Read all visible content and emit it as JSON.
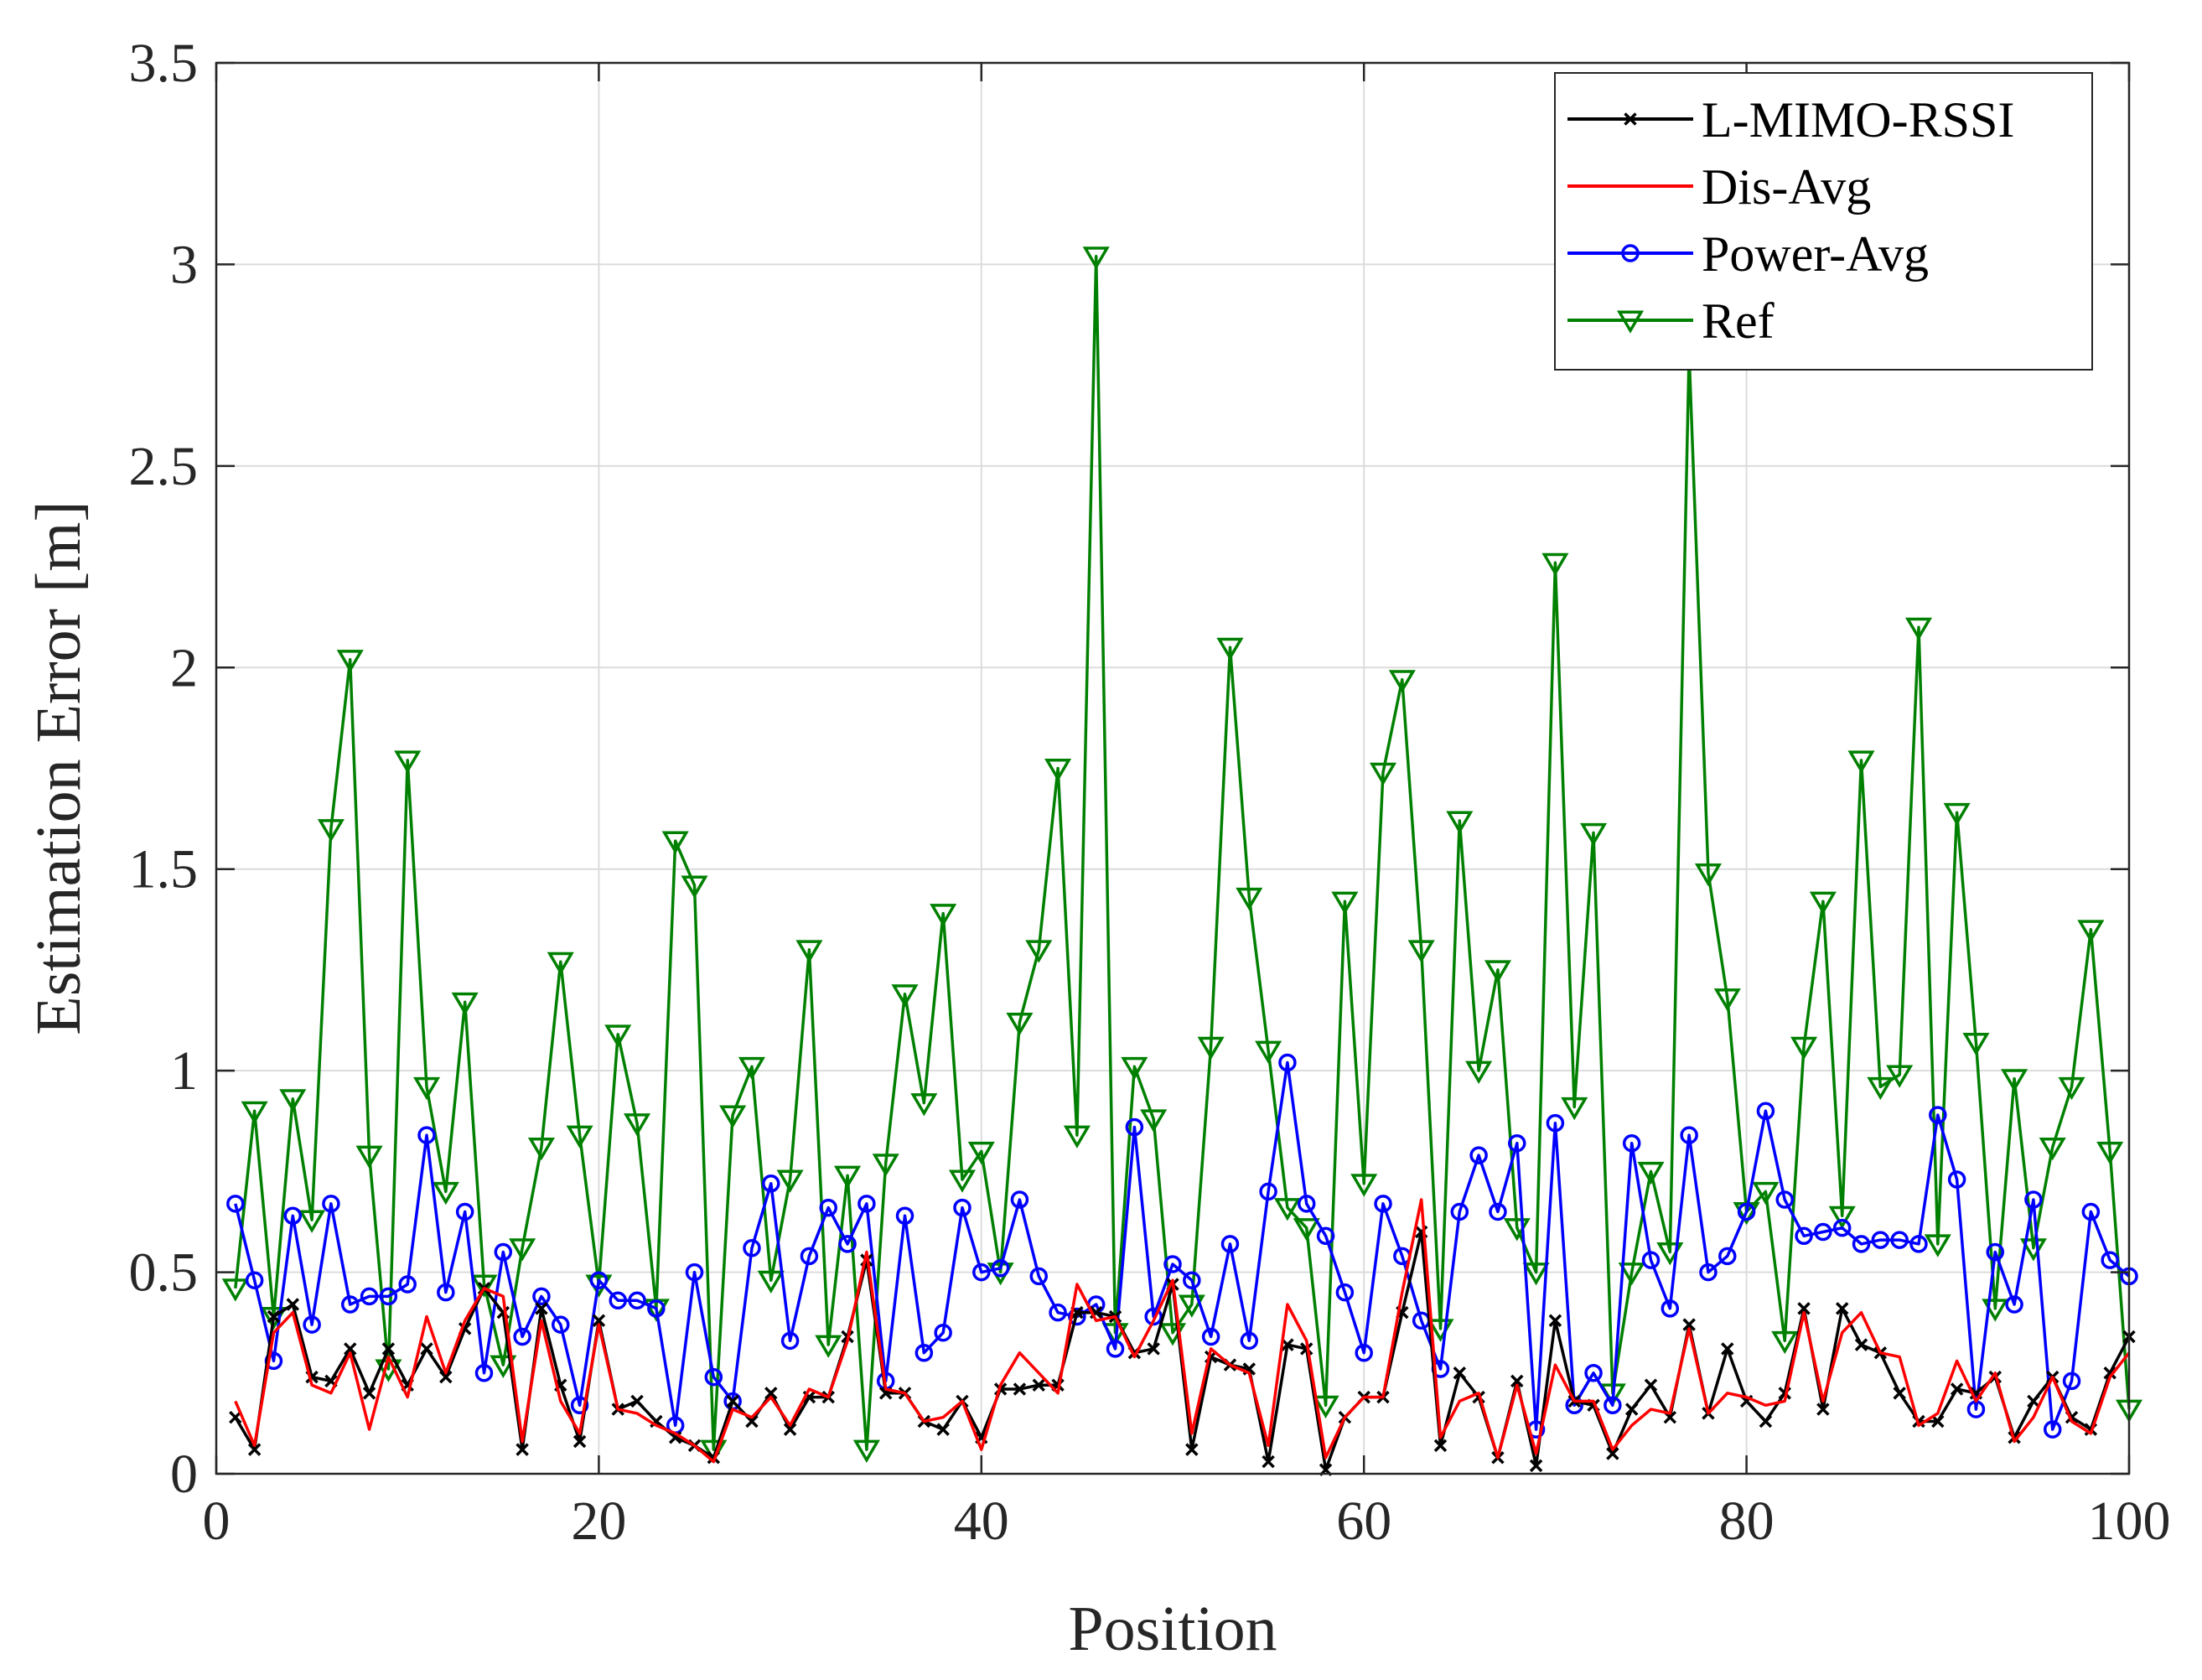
{
  "chart_data": {
    "type": "line",
    "title": "",
    "xlabel": "Position",
    "ylabel": "Estimation Error [m]",
    "xlim": [
      0,
      100
    ],
    "ylim": [
      0,
      3.5
    ],
    "xticks": [
      "0",
      "20",
      "40",
      "60",
      "80",
      "100"
    ],
    "yticks": [
      "0",
      "0.5",
      "1",
      "1.5",
      "2",
      "2.5",
      "3",
      "3.5"
    ],
    "grid": true,
    "legend_position": "top-right",
    "x": [
      1,
      2,
      3,
      4,
      5,
      6,
      7,
      8,
      9,
      10,
      11,
      12,
      13,
      14,
      15,
      16,
      17,
      18,
      19,
      20,
      21,
      22,
      23,
      24,
      25,
      26,
      27,
      28,
      29,
      30,
      31,
      32,
      33,
      34,
      35,
      36,
      37,
      38,
      39,
      40,
      41,
      42,
      43,
      44,
      45,
      46,
      47,
      48,
      49,
      50,
      51,
      52,
      53,
      54,
      55,
      56,
      57,
      58,
      59,
      60,
      61,
      62,
      63,
      64,
      65,
      66,
      67,
      68,
      69,
      70,
      71,
      72,
      73,
      74,
      75,
      76,
      77,
      78,
      79,
      80,
      81,
      82,
      83,
      84,
      85,
      86,
      87,
      88,
      89,
      90,
      91,
      92,
      93,
      94,
      95,
      96,
      97,
      98,
      99,
      100
    ],
    "series": [
      {
        "name": "L-MIMO-RSSI",
        "color": "#000000",
        "marker": "x",
        "values": [
          0.14,
          0.06,
          0.39,
          0.42,
          0.24,
          0.23,
          0.31,
          0.2,
          0.31,
          0.22,
          0.31,
          0.24,
          0.36,
          0.46,
          0.4,
          0.06,
          0.41,
          0.22,
          0.08,
          0.38,
          0.16,
          0.18,
          0.13,
          0.09,
          0.07,
          0.04,
          0.18,
          0.13,
          0.2,
          0.11,
          0.19,
          0.19,
          0.34,
          0.53,
          0.2,
          0.2,
          0.13,
          0.11,
          0.18,
          0.09,
          0.21,
          0.21,
          0.22,
          0.22,
          0.4,
          0.4,
          0.39,
          0.3,
          0.31,
          0.47,
          0.06,
          0.29,
          0.27,
          0.26,
          0.03,
          0.32,
          0.31,
          0.01,
          0.14,
          0.19,
          0.19,
          0.4,
          0.6,
          0.07,
          0.25,
          0.19,
          0.04,
          0.23,
          0.02,
          0.38,
          0.18,
          0.17,
          0.05,
          0.16,
          0.22,
          0.14,
          0.37,
          0.15,
          0.31,
          0.18,
          0.13,
          0.2,
          0.41,
          0.16,
          0.41,
          0.32,
          0.3,
          0.2,
          0.13,
          0.13,
          0.21,
          0.2,
          0.24,
          0.09,
          0.18,
          0.24,
          0.14,
          0.11,
          0.25,
          0.34
        ]
      },
      {
        "name": "Dis-Avg",
        "color": "#ff0000",
        "marker": "none",
        "values": [
          0.18,
          0.07,
          0.35,
          0.4,
          0.22,
          0.2,
          0.3,
          0.11,
          0.29,
          0.19,
          0.39,
          0.25,
          0.38,
          0.46,
          0.44,
          0.08,
          0.38,
          0.18,
          0.1,
          0.37,
          0.16,
          0.15,
          0.12,
          0.1,
          0.07,
          0.03,
          0.16,
          0.14,
          0.19,
          0.12,
          0.21,
          0.19,
          0.33,
          0.55,
          0.21,
          0.2,
          0.13,
          0.14,
          0.18,
          0.06,
          0.22,
          0.3,
          0.25,
          0.2,
          0.47,
          0.38,
          0.39,
          0.29,
          0.38,
          0.48,
          0.1,
          0.31,
          0.27,
          0.25,
          0.07,
          0.42,
          0.33,
          0.04,
          0.14,
          0.19,
          0.19,
          0.45,
          0.68,
          0.09,
          0.18,
          0.2,
          0.04,
          0.22,
          0.05,
          0.27,
          0.18,
          0.18,
          0.06,
          0.12,
          0.16,
          0.15,
          0.36,
          0.15,
          0.2,
          0.19,
          0.17,
          0.18,
          0.4,
          0.18,
          0.35,
          0.4,
          0.3,
          0.29,
          0.12,
          0.15,
          0.28,
          0.18,
          0.25,
          0.08,
          0.14,
          0.24,
          0.13,
          0.1,
          0.24,
          0.3
        ]
      },
      {
        "name": "Power-Avg",
        "color": "#0000ff",
        "marker": "o",
        "values": [
          0.67,
          0.48,
          0.28,
          0.64,
          0.37,
          0.67,
          0.42,
          0.44,
          0.44,
          0.47,
          0.84,
          0.45,
          0.65,
          0.25,
          0.55,
          0.34,
          0.44,
          0.37,
          0.17,
          0.48,
          0.43,
          0.43,
          0.41,
          0.12,
          0.5,
          0.24,
          0.18,
          0.56,
          0.72,
          0.33,
          0.54,
          0.66,
          0.57,
          0.67,
          0.23,
          0.64,
          0.3,
          0.35,
          0.66,
          0.5,
          0.51,
          0.68,
          0.49,
          0.4,
          0.39,
          0.42,
          0.31,
          0.86,
          0.39,
          0.52,
          0.48,
          0.34,
          0.57,
          0.33,
          0.7,
          1.02,
          0.67,
          0.59,
          0.45,
          0.3,
          0.67,
          0.54,
          0.38,
          0.26,
          0.65,
          0.79,
          0.65,
          0.82,
          0.11,
          0.87,
          0.17,
          0.25,
          0.17,
          0.82,
          0.53,
          0.41,
          0.84,
          0.5,
          0.54,
          0.65,
          0.9,
          0.68,
          0.59,
          0.6,
          0.61,
          0.57,
          0.58,
          0.58,
          0.57,
          0.89,
          0.73,
          0.16,
          0.55,
          0.42,
          0.68,
          0.11,
          0.23,
          0.65,
          0.53,
          0.49
        ]
      },
      {
        "name": "Ref",
        "color": "#008000",
        "marker": "triangle-down",
        "values": [
          0.46,
          0.9,
          0.39,
          0.93,
          0.63,
          1.6,
          2.02,
          0.79,
          0.26,
          1.77,
          0.96,
          0.7,
          1.17,
          0.47,
          0.27,
          0.56,
          0.81,
          1.27,
          0.84,
          0.47,
          1.09,
          0.87,
          0.41,
          1.57,
          1.46,
          0.06,
          0.89,
          1.01,
          0.48,
          0.73,
          1.3,
          0.32,
          0.74,
          0.06,
          0.77,
          1.19,
          0.92,
          1.39,
          0.73,
          0.8,
          0.5,
          1.12,
          1.3,
          1.75,
          0.84,
          3.02,
          0.35,
          1.01,
          0.88,
          0.35,
          0.42,
          1.06,
          2.05,
          1.43,
          1.05,
          0.66,
          0.61,
          0.17,
          1.42,
          0.72,
          1.74,
          1.97,
          1.3,
          0.36,
          1.62,
          1.0,
          1.25,
          0.61,
          0.5,
          2.26,
          0.91,
          1.59,
          0.2,
          0.5,
          0.75,
          0.55,
          2.78,
          1.49,
          1.18,
          0.65,
          0.7,
          0.33,
          1.06,
          1.42,
          0.64,
          1.77,
          0.96,
          0.99,
          2.1,
          0.57,
          1.64,
          1.07,
          0.41,
          0.98,
          0.56,
          0.81,
          0.96,
          1.35,
          0.8,
          0.16
        ]
      }
    ]
  }
}
